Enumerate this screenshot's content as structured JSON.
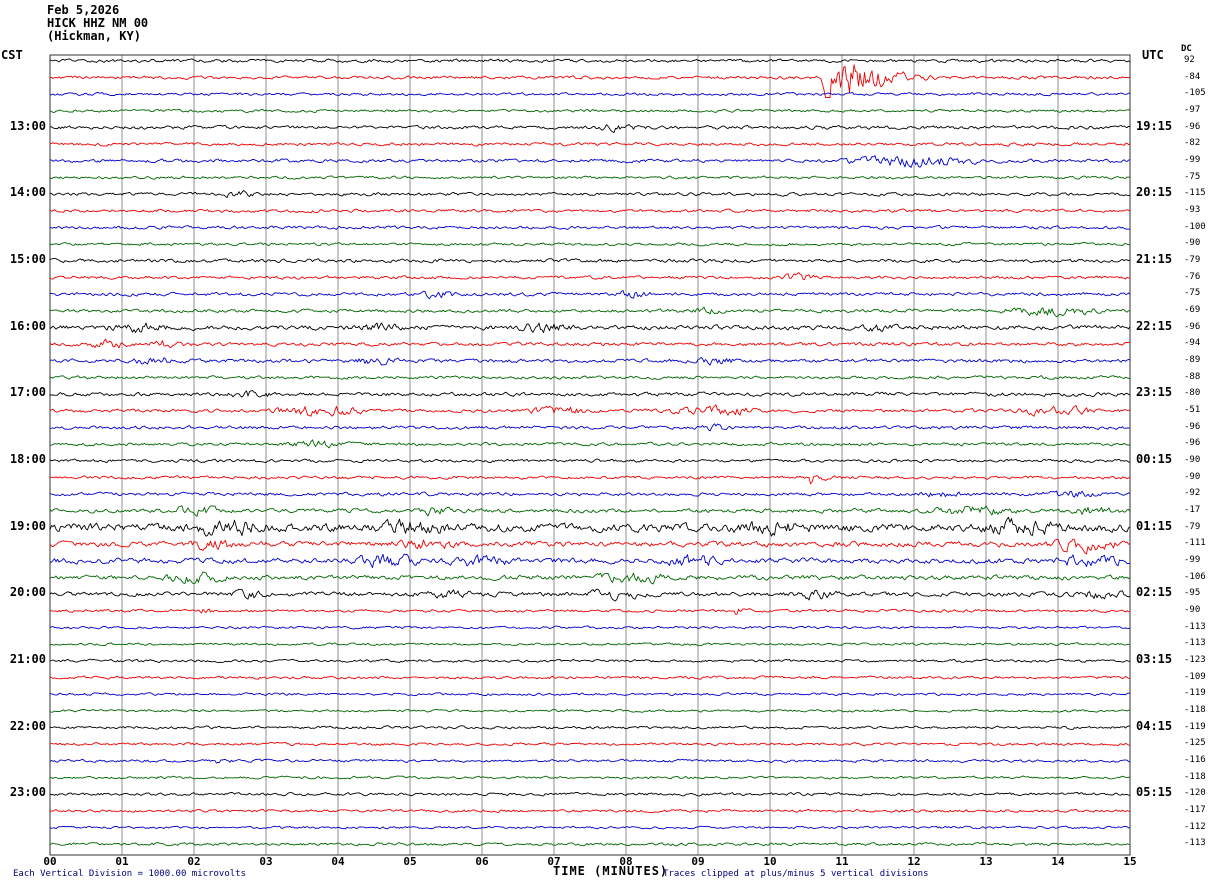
{
  "header": {
    "date": "Feb 5,2026",
    "station": "HICK HHZ NM 00",
    "location": "(Hickman, KY)"
  },
  "axes": {
    "left_tz": "CST",
    "right_tz": "UTC",
    "dc_header": "DC"
  },
  "footer": {
    "scale_note": "Each Vertical Division = 1000.00 microvolts",
    "clip_note": "Traces clipped at plus/minus 5 vertical divisions"
  },
  "chart_data": {
    "type": "line",
    "subtype": "seismogram_helicorder",
    "x_label": "TIME (MINUTES)",
    "x_ticks": [
      "00",
      "01",
      "02",
      "03",
      "04",
      "05",
      "06",
      "07",
      "08",
      "09",
      "10",
      "11",
      "12",
      "13",
      "14",
      "15"
    ],
    "x_range_minutes": [
      0,
      15
    ],
    "minutes_per_line": 15,
    "clip_divisions": 5,
    "microvolts_per_division": "1000.00",
    "grid_color": "#8f8f8f",
    "frame_color": "#333333",
    "colors": {
      "black": "#000000",
      "red": "#ee0000",
      "blue": "#0000cc",
      "green": "#006600"
    },
    "rows": [
      {
        "left": "",
        "right": "",
        "dc": "92",
        "color": "black",
        "noise": 1.0,
        "bursts": []
      },
      {
        "left": "",
        "right": "",
        "dc": "-84",
        "color": "red",
        "noise": 1.0,
        "bursts": [
          [
            10.72,
            12.9,
            20
          ]
        ]
      },
      {
        "left": "",
        "right": "",
        "dc": "-105",
        "color": "blue",
        "noise": 0.9,
        "bursts": []
      },
      {
        "left": "",
        "right": "",
        "dc": "-97",
        "color": "green",
        "noise": 0.9,
        "bursts": []
      },
      {
        "left": "13:00",
        "right": "19:15",
        "dc": "-96",
        "color": "black",
        "noise": 1.1,
        "bursts": [
          [
            7.5,
            8.2,
            1.6
          ]
        ]
      },
      {
        "left": "",
        "right": "",
        "dc": "-82",
        "color": "red",
        "noise": 1.0,
        "bursts": []
      },
      {
        "left": "",
        "right": "",
        "dc": "-99",
        "color": "blue",
        "noise": 1.1,
        "bursts": [
          [
            10.9,
            13.0,
            3.0
          ]
        ]
      },
      {
        "left": "",
        "right": "",
        "dc": "-75",
        "color": "green",
        "noise": 0.9,
        "bursts": []
      },
      {
        "left": "14:00",
        "right": "20:15",
        "dc": "-115",
        "color": "black",
        "noise": 1.0,
        "bursts": [
          [
            2.3,
            2.9,
            1.5
          ]
        ]
      },
      {
        "left": "",
        "right": "",
        "dc": "-93",
        "color": "red",
        "noise": 1.0,
        "bursts": []
      },
      {
        "left": "",
        "right": "",
        "dc": "-100",
        "color": "blue",
        "noise": 1.0,
        "bursts": []
      },
      {
        "left": "",
        "right": "",
        "dc": "-90",
        "color": "green",
        "noise": 0.9,
        "bursts": []
      },
      {
        "left": "15:00",
        "right": "21:15",
        "dc": "-79",
        "color": "black",
        "noise": 1.1,
        "bursts": []
      },
      {
        "left": "",
        "right": "",
        "dc": "-76",
        "color": "red",
        "noise": 1.0,
        "bursts": [
          [
            10.1,
            10.7,
            1.8
          ]
        ]
      },
      {
        "left": "",
        "right": "",
        "dc": "-75",
        "color": "blue",
        "noise": 1.1,
        "bursts": [
          [
            5.1,
            5.7,
            1.8
          ],
          [
            7.7,
            8.4,
            2.0
          ]
        ]
      },
      {
        "left": "",
        "right": "",
        "dc": "-69",
        "color": "green",
        "noise": 1.1,
        "bursts": [
          [
            8.8,
            9.4,
            1.6
          ],
          [
            13.1,
            14.7,
            2.4
          ]
        ]
      },
      {
        "left": "16:00",
        "right": "22:15",
        "dc": "-96",
        "color": "black",
        "noise": 1.5,
        "bursts": [
          [
            0.7,
            1.7,
            2.0
          ],
          [
            4.2,
            4.9,
            1.8
          ],
          [
            6.4,
            7.3,
            2.0
          ],
          [
            11.2,
            11.8,
            1.6
          ]
        ]
      },
      {
        "left": "",
        "right": "",
        "dc": "-94",
        "color": "red",
        "noise": 1.2,
        "bursts": [
          [
            0.5,
            1.1,
            2.4
          ],
          [
            1.3,
            1.9,
            1.8
          ]
        ]
      },
      {
        "left": "",
        "right": "",
        "dc": "-89",
        "color": "blue",
        "noise": 1.2,
        "bursts": [
          [
            1.1,
            1.8,
            2.0
          ],
          [
            4.1,
            4.9,
            2.0
          ],
          [
            8.9,
            9.6,
            1.6
          ]
        ]
      },
      {
        "left": "",
        "right": "",
        "dc": "-88",
        "color": "green",
        "noise": 1.0,
        "bursts": []
      },
      {
        "left": "17:00",
        "right": "23:15",
        "dc": "-80",
        "color": "black",
        "noise": 1.2,
        "bursts": [
          [
            2.3,
            3.2,
            1.8
          ]
        ]
      },
      {
        "left": "",
        "right": "",
        "dc": "-51",
        "color": "red",
        "noise": 1.1,
        "bursts": [
          [
            3.0,
            4.5,
            2.8
          ],
          [
            6.6,
            7.5,
            2.2
          ],
          [
            8.5,
            9.9,
            2.6
          ],
          [
            13.3,
            14.6,
            2.4
          ]
        ]
      },
      {
        "left": "",
        "right": "",
        "dc": "-96",
        "color": "blue",
        "noise": 1.1,
        "bursts": [
          [
            8.9,
            9.5,
            1.5
          ]
        ]
      },
      {
        "left": "",
        "right": "",
        "dc": "-96",
        "color": "green",
        "noise": 1.0,
        "bursts": [
          [
            3.2,
            4.3,
            1.8
          ]
        ]
      },
      {
        "left": "18:00",
        "right": "00:15",
        "dc": "-90",
        "color": "black",
        "noise": 1.0,
        "bursts": []
      },
      {
        "left": "",
        "right": "",
        "dc": "-90",
        "color": "red",
        "noise": 1.0,
        "bursts": [
          [
            10.55,
            11.05,
            4.5
          ]
        ]
      },
      {
        "left": "",
        "right": "",
        "dc": "-92",
        "color": "blue",
        "noise": 1.1,
        "bursts": [
          [
            11.9,
            12.7,
            1.7
          ],
          [
            13.7,
            14.6,
            1.7
          ]
        ]
      },
      {
        "left": "",
        "right": "",
        "dc": "-17",
        "color": "green",
        "noise": 1.3,
        "bursts": [
          [
            1.6,
            2.4,
            2.2
          ],
          [
            5.0,
            5.7,
            1.8
          ],
          [
            12.1,
            13.5,
            2.2
          ],
          [
            14.1,
            14.9,
            2.0
          ]
        ]
      },
      {
        "left": "19:00",
        "right": "01:15",
        "dc": "-79",
        "color": "black",
        "noise": 2.6,
        "bursts": [
          [
            1.9,
            3.1,
            3.2
          ],
          [
            4.4,
            5.6,
            3.0
          ],
          [
            9.4,
            10.6,
            3.0
          ],
          [
            12.9,
            14.1,
            3.4
          ]
        ]
      },
      {
        "left": "",
        "right": "",
        "dc": "-111",
        "color": "red",
        "noise": 1.7,
        "bursts": [
          [
            1.9,
            2.7,
            2.4
          ],
          [
            4.7,
            5.7,
            2.6
          ],
          [
            13.8,
            14.9,
            3.2
          ]
        ]
      },
      {
        "left": "",
        "right": "",
        "dc": "-99",
        "color": "blue",
        "noise": 1.7,
        "bursts": [
          [
            4.1,
            5.3,
            2.8
          ],
          [
            5.4,
            6.6,
            2.6
          ],
          [
            8.4,
            9.4,
            2.4
          ],
          [
            13.9,
            15.0,
            2.8
          ]
        ]
      },
      {
        "left": "",
        "right": "",
        "dc": "-106",
        "color": "green",
        "noise": 1.5,
        "bursts": [
          [
            1.5,
            2.5,
            2.4
          ],
          [
            7.5,
            8.7,
            2.2
          ]
        ]
      },
      {
        "left": "20:00",
        "right": "02:15",
        "dc": "-95",
        "color": "black",
        "noise": 1.4,
        "bursts": [
          [
            2.5,
            3.1,
            2.2
          ],
          [
            5.2,
            5.9,
            2.0
          ],
          [
            7.4,
            8.3,
            2.2
          ],
          [
            10.3,
            11.0,
            2.2
          ],
          [
            14.3,
            15.0,
            2.4
          ]
        ]
      },
      {
        "left": "",
        "right": "",
        "dc": "-90",
        "color": "red",
        "noise": 0.9,
        "bursts": [
          [
            2.05,
            2.5,
            3.2
          ],
          [
            9.5,
            10.0,
            3.0
          ]
        ]
      },
      {
        "left": "",
        "right": "",
        "dc": "-113",
        "color": "blue",
        "noise": 0.8,
        "bursts": []
      },
      {
        "left": "",
        "right": "",
        "dc": "-113",
        "color": "green",
        "noise": 0.8,
        "bursts": []
      },
      {
        "left": "21:00",
        "right": "03:15",
        "dc": "-123",
        "color": "black",
        "noise": 0.9,
        "bursts": []
      },
      {
        "left": "",
        "right": "",
        "dc": "-109",
        "color": "red",
        "noise": 0.9,
        "bursts": []
      },
      {
        "left": "",
        "right": "",
        "dc": "-119",
        "color": "blue",
        "noise": 0.8,
        "bursts": []
      },
      {
        "left": "",
        "right": "",
        "dc": "-118",
        "color": "green",
        "noise": 0.8,
        "bursts": []
      },
      {
        "left": "22:00",
        "right": "04:15",
        "dc": "-119",
        "color": "black",
        "noise": 0.9,
        "bursts": []
      },
      {
        "left": "",
        "right": "",
        "dc": "-125",
        "color": "red",
        "noise": 0.9,
        "bursts": []
      },
      {
        "left": "",
        "right": "",
        "dc": "-116",
        "color": "blue",
        "noise": 0.9,
        "bursts": [
          [
            2.3,
            2.75,
            3.2
          ]
        ]
      },
      {
        "left": "",
        "right": "",
        "dc": "-118",
        "color": "green",
        "noise": 0.8,
        "bursts": []
      },
      {
        "left": "23:00",
        "right": "05:15",
        "dc": "-120",
        "color": "black",
        "noise": 0.9,
        "bursts": []
      },
      {
        "left": "",
        "right": "",
        "dc": "-117",
        "color": "red",
        "noise": 0.9,
        "bursts": []
      },
      {
        "left": "",
        "right": "",
        "dc": "-112",
        "color": "blue",
        "noise": 0.8,
        "bursts": []
      },
      {
        "left": "",
        "right": "",
        "dc": "-113",
        "color": "green",
        "noise": 0.9,
        "bursts": []
      }
    ]
  }
}
